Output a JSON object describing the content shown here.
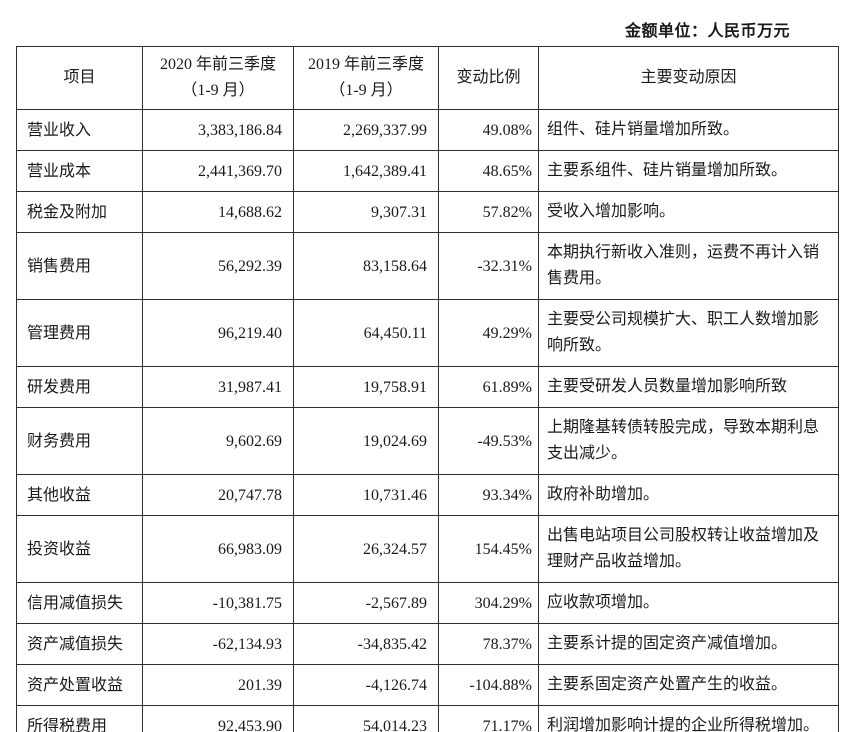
{
  "unit_label": "金额单位：人民币万元",
  "colors": {
    "border": "#2e2e2e",
    "text": "#1a1a1a",
    "background": "#ffffff"
  },
  "table": {
    "headers": {
      "item": "项目",
      "col2020": "2020 年前三季度\n（1-9 月）",
      "col2019": "2019 年前三季度\n（1-9 月）",
      "change": "变动比例",
      "reason": "主要变动原因"
    },
    "rows": [
      {
        "item": "营业收入",
        "v2020": "3,383,186.84",
        "v2019": "2,269,337.99",
        "change": "49.08%",
        "reason": "组件、硅片销量增加所致。"
      },
      {
        "item": "营业成本",
        "v2020": "2,441,369.70",
        "v2019": "1,642,389.41",
        "change": "48.65%",
        "reason": "主要系组件、硅片销量增加所致。"
      },
      {
        "item": "税金及附加",
        "v2020": "14,688.62",
        "v2019": "9,307.31",
        "change": "57.82%",
        "reason": "受收入增加影响。"
      },
      {
        "item": "销售费用",
        "v2020": "56,292.39",
        "v2019": "83,158.64",
        "change": "-32.31%",
        "reason": "本期执行新收入准则，运费不再计入销售费用。"
      },
      {
        "item": "管理费用",
        "v2020": "96,219.40",
        "v2019": "64,450.11",
        "change": "49.29%",
        "reason": "主要受公司规模扩大、职工人数增加影响所致。"
      },
      {
        "item": "研发费用",
        "v2020": "31,987.41",
        "v2019": "19,758.91",
        "change": "61.89%",
        "reason": "主要受研发人员数量增加影响所致"
      },
      {
        "item": "财务费用",
        "v2020": "9,602.69",
        "v2019": "19,024.69",
        "change": "-49.53%",
        "reason": "上期隆基转债转股完成，导致本期利息支出减少。"
      },
      {
        "item": "其他收益",
        "v2020": "20,747.78",
        "v2019": "10,731.46",
        "change": "93.34%",
        "reason": "政府补助增加。"
      },
      {
        "item": "投资收益",
        "v2020": "66,983.09",
        "v2019": "26,324.57",
        "change": "154.45%",
        "reason": "出售电站项目公司股权转让收益增加及理财产品收益增加。"
      },
      {
        "item": "信用减值损失",
        "v2020": "-10,381.75",
        "v2019": "-2,567.89",
        "change": "304.29%",
        "reason": "应收款项增加。"
      },
      {
        "item": "资产减值损失",
        "v2020": "-62,134.93",
        "v2019": "-34,835.42",
        "change": "78.37%",
        "reason": "主要系计提的固定资产减值增加。"
      },
      {
        "item": "资产处置收益",
        "v2020": "201.39",
        "v2019": "-4,126.74",
        "change": "-104.88%",
        "reason": "主要系固定资产处置产生的收益。"
      },
      {
        "item": "所得税费用",
        "v2020": "92,453.90",
        "v2019": "54,014.23",
        "change": "71.17%",
        "reason": "利润增加影响计提的企业所得税增加。"
      }
    ]
  }
}
